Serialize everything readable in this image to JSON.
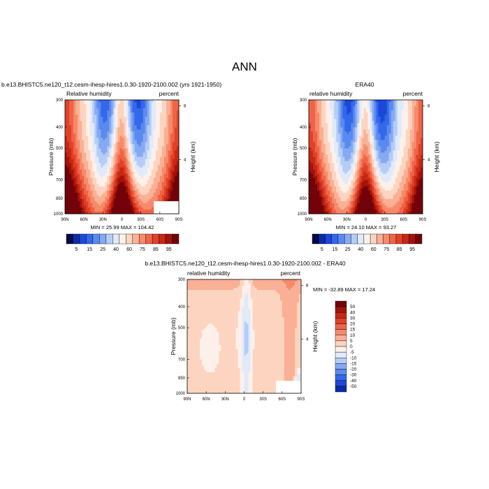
{
  "figure": {
    "title": "ANN"
  },
  "chart_data": [
    {
      "type": "heatmap",
      "title": "b.e13.BHISTC5.ne120_t12.cesm-ihesp-hires1.0.30-1920-2100.002 (yrs 1921-1950)",
      "left_label": "Relative humidity",
      "right_label": "percent",
      "ylabel": "Pressure (mb)",
      "ylabel_right": "Height (km)",
      "x_ticks": [
        "90N",
        "60N",
        "30N",
        "0",
        "30S",
        "60S",
        "90S"
      ],
      "y_ticks": [
        "300",
        "400",
        "500",
        "700",
        "850",
        "1000"
      ],
      "height_ticks": [
        "8",
        "4"
      ],
      "stats": "MIN = 25.99  MAX = 104.42",
      "scale": "log",
      "palette": "full"
    },
    {
      "type": "heatmap",
      "title": "ERA40",
      "left_label": "relative humidity",
      "right_label": "percent",
      "ylabel": "Pressure (mb)",
      "ylabel_right": "Height (km)",
      "x_ticks": [
        "90N",
        "60N",
        "30N",
        "0",
        "30S",
        "60S",
        "90S"
      ],
      "y_ticks": [
        "300",
        "400",
        "500",
        "700",
        "850",
        "1000"
      ],
      "height_ticks": [
        "8",
        "4"
      ],
      "stats": "MIN = 24.10  MAX = 93.27",
      "scale": "log",
      "palette": "full"
    },
    {
      "type": "heatmap",
      "title": "b.e13.BHISTC5.ne120_t12.cesm-ihesp-hires1.0.30-1920-2100.002 - ERA40",
      "left_label": "relative humidity",
      "right_label": "percent",
      "ylabel": "Pressure (mb)",
      "ylabel_right": "Height (km)",
      "x_ticks": [
        "90N",
        "60N",
        "30N",
        "0",
        "30S",
        "60S",
        "90S"
      ],
      "y_ticks": [
        "300",
        "400",
        "500",
        "700",
        "850",
        "1000"
      ],
      "height_ticks": [
        "8",
        "4"
      ],
      "stats": "MIN = -32.89  MAX = 17.24",
      "scale": "log",
      "palette": "diff"
    }
  ],
  "colorbars": {
    "field": {
      "labels": [
        "5",
        "15",
        "25",
        "40",
        "60",
        "75",
        "85",
        "95"
      ],
      "colors": [
        "#08084a",
        "#0a2ba8",
        "#1b48d8",
        "#3468ea",
        "#5a8af0",
        "#86aaf2",
        "#b5cdf6",
        "#dfeafb",
        "#fdf0ea",
        "#fcd4c0",
        "#f9b095",
        "#f68a6b",
        "#ef6446",
        "#e04128",
        "#c72815",
        "#a31309",
        "#72030a"
      ]
    },
    "diff": {
      "labels": [
        "50",
        "40",
        "30",
        "20",
        "15",
        "10",
        "5",
        "0",
        "-5",
        "-10",
        "-15",
        "-20",
        "-30",
        "-40",
        "-50"
      ],
      "colors": [
        "#72030a",
        "#a31309",
        "#c72815",
        "#e04128",
        "#ef6446",
        "#f68a6b",
        "#f9b095",
        "#fcd4c0",
        "#fdf0ea",
        "#dfeafb",
        "#b5cdf6",
        "#86aaf2",
        "#5a8af0",
        "#3468ea",
        "#1b48d8",
        "#0a2ba8"
      ]
    }
  }
}
